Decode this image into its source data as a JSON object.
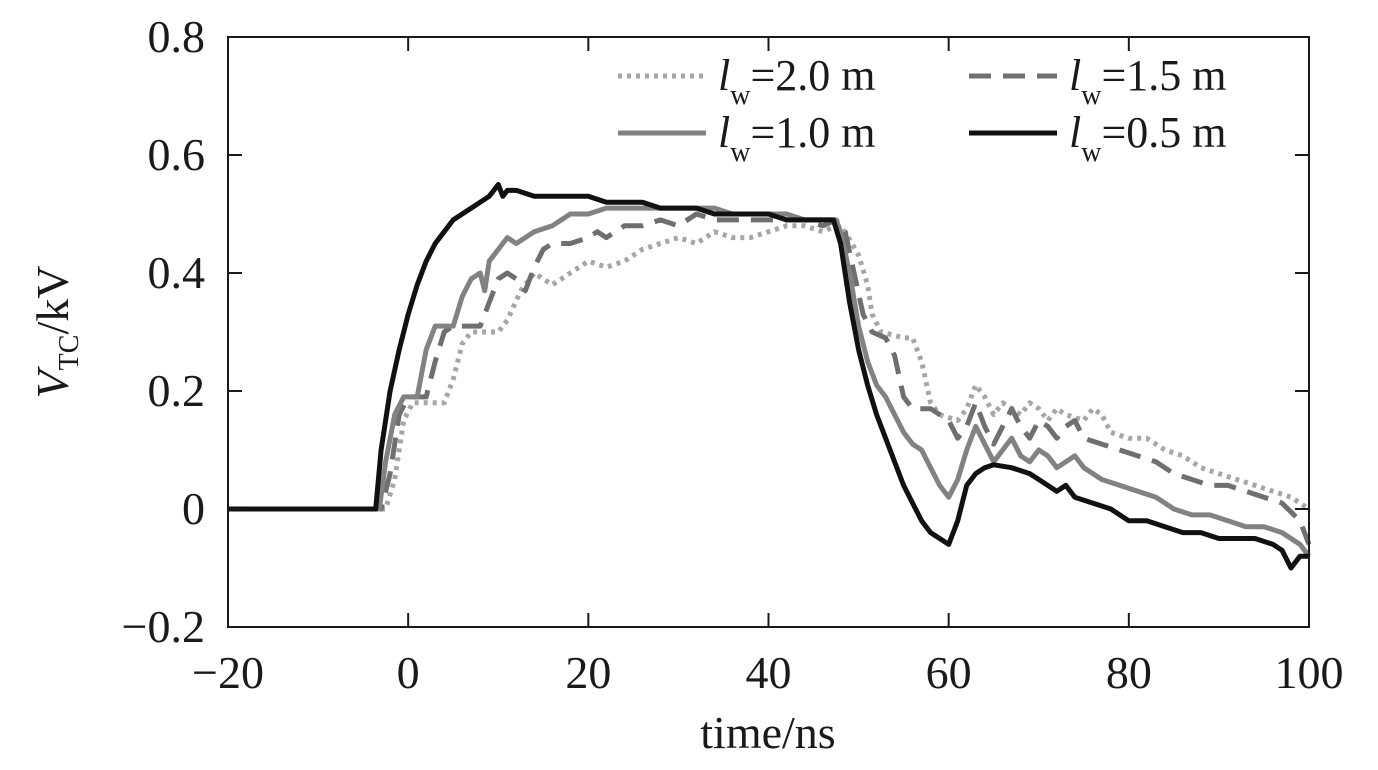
{
  "chart_data": {
    "type": "line",
    "title": "",
    "xlabel": "time/ns",
    "ylabel": {
      "main": "V",
      "sub": "TC",
      "rest": "/kV"
    },
    "xlim": [
      -20,
      100
    ],
    "ylim": [
      -0.2,
      0.8
    ],
    "xticks": [
      -20,
      0,
      20,
      40,
      60,
      80,
      100
    ],
    "xtick_labels": [
      "−20",
      "0",
      "20",
      "40",
      "60",
      "80",
      "100"
    ],
    "yticks": [
      -0.2,
      0,
      0.2,
      0.4,
      0.6,
      0.8
    ],
    "ytick_labels": [
      "−0.2",
      "0",
      "0.2",
      "0.4",
      "0.6",
      "0.8"
    ],
    "grid": false,
    "legend_position": "top-right",
    "series": [
      {
        "name": "l_w=2.0 m",
        "legend": {
          "l": "l",
          "sub": "w",
          "rest": "=2.0 m"
        },
        "color": "#a6a6a6",
        "dash": "dotted",
        "points": [
          [
            -20,
            0
          ],
          [
            -2.5,
            0
          ],
          [
            -1.5,
            0.05
          ],
          [
            -0.5,
            0.15
          ],
          [
            0.5,
            0.18
          ],
          [
            4,
            0.18
          ],
          [
            5,
            0.22
          ],
          [
            6,
            0.28
          ],
          [
            7,
            0.3
          ],
          [
            10,
            0.3
          ],
          [
            11,
            0.32
          ],
          [
            12.5,
            0.37
          ],
          [
            14,
            0.4
          ],
          [
            16,
            0.38
          ],
          [
            18,
            0.4
          ],
          [
            20,
            0.42
          ],
          [
            22,
            0.41
          ],
          [
            24,
            0.42
          ],
          [
            26,
            0.44
          ],
          [
            28,
            0.45
          ],
          [
            30,
            0.46
          ],
          [
            32,
            0.45
          ],
          [
            34,
            0.47
          ],
          [
            36,
            0.46
          ],
          [
            38,
            0.46
          ],
          [
            40,
            0.47
          ],
          [
            42,
            0.48
          ],
          [
            44,
            0.48
          ],
          [
            46,
            0.47
          ],
          [
            47.5,
            0.48
          ],
          [
            48.5,
            0.47
          ],
          [
            50,
            0.43
          ],
          [
            51,
            0.38
          ],
          [
            51.5,
            0.33
          ],
          [
            52.5,
            0.3
          ],
          [
            55,
            0.29
          ],
          [
            56,
            0.29
          ],
          [
            57,
            0.25
          ],
          [
            58,
            0.18
          ],
          [
            59,
            0.16
          ],
          [
            61,
            0.15
          ],
          [
            62,
            0.17
          ],
          [
            63,
            0.21
          ],
          [
            64,
            0.19
          ],
          [
            65,
            0.16
          ],
          [
            66,
            0.18
          ],
          [
            67,
            0.17
          ],
          [
            68,
            0.16
          ],
          [
            69,
            0.18
          ],
          [
            70,
            0.17
          ],
          [
            71,
            0.15
          ],
          [
            72,
            0.17
          ],
          [
            73,
            0.16
          ],
          [
            75,
            0.15
          ],
          [
            76,
            0.17
          ],
          [
            77,
            0.16
          ],
          [
            78,
            0.13
          ],
          [
            80,
            0.12
          ],
          [
            82,
            0.12
          ],
          [
            84,
            0.1
          ],
          [
            86,
            0.09
          ],
          [
            88,
            0.07
          ],
          [
            90,
            0.06
          ],
          [
            92,
            0.05
          ],
          [
            94,
            0.04
          ],
          [
            96,
            0.03
          ],
          [
            98,
            0.02
          ],
          [
            100,
            0.0
          ]
        ]
      },
      {
        "name": "l_w=1.5 m",
        "legend": {
          "l": "l",
          "sub": "w",
          "rest": "=1.5 m"
        },
        "color": "#6f6f6f",
        "dash": "dashed",
        "points": [
          [
            -20,
            0
          ],
          [
            -3,
            0
          ],
          [
            -2,
            0.06
          ],
          [
            -1,
            0.16
          ],
          [
            0,
            0.19
          ],
          [
            2,
            0.19
          ],
          [
            3,
            0.25
          ],
          [
            4,
            0.3
          ],
          [
            5,
            0.31
          ],
          [
            8,
            0.31
          ],
          [
            9,
            0.35
          ],
          [
            10,
            0.39
          ],
          [
            11,
            0.4
          ],
          [
            12,
            0.39
          ],
          [
            13,
            0.37
          ],
          [
            14,
            0.41
          ],
          [
            15,
            0.44
          ],
          [
            16,
            0.45
          ],
          [
            18,
            0.45
          ],
          [
            20,
            0.46
          ],
          [
            21,
            0.47
          ],
          [
            22,
            0.46
          ],
          [
            24,
            0.48
          ],
          [
            26,
            0.48
          ],
          [
            28,
            0.49
          ],
          [
            30,
            0.48
          ],
          [
            32,
            0.5
          ],
          [
            34,
            0.49
          ],
          [
            36,
            0.49
          ],
          [
            38,
            0.49
          ],
          [
            40,
            0.49
          ],
          [
            42,
            0.49
          ],
          [
            44,
            0.49
          ],
          [
            46,
            0.48
          ],
          [
            47.5,
            0.49
          ],
          [
            48.5,
            0.47
          ],
          [
            49.5,
            0.4
          ],
          [
            50.5,
            0.33
          ],
          [
            51.5,
            0.3
          ],
          [
            53,
            0.29
          ],
          [
            54,
            0.26
          ],
          [
            55,
            0.19
          ],
          [
            56,
            0.17
          ],
          [
            58,
            0.17
          ],
          [
            60,
            0.15
          ],
          [
            61,
            0.12
          ],
          [
            62,
            0.14
          ],
          [
            63,
            0.18
          ],
          [
            64,
            0.14
          ],
          [
            65,
            0.11
          ],
          [
            66,
            0.14
          ],
          [
            67,
            0.17
          ],
          [
            68,
            0.14
          ],
          [
            69,
            0.12
          ],
          [
            70,
            0.15
          ],
          [
            71,
            0.14
          ],
          [
            72,
            0.12
          ],
          [
            73,
            0.14
          ],
          [
            74,
            0.15
          ],
          [
            75,
            0.12
          ],
          [
            77,
            0.11
          ],
          [
            79,
            0.1
          ],
          [
            81,
            0.09
          ],
          [
            83,
            0.08
          ],
          [
            85,
            0.06
          ],
          [
            87,
            0.05
          ],
          [
            89,
            0.04
          ],
          [
            91,
            0.04
          ],
          [
            93,
            0.03
          ],
          [
            95,
            0.02
          ],
          [
            97,
            0.01
          ],
          [
            99,
            -0.02
          ],
          [
            100,
            -0.06
          ]
        ]
      },
      {
        "name": "l_w=1.0 m",
        "legend": {
          "l": "l",
          "sub": "w",
          "rest": "=1.0 m"
        },
        "color": "#828282",
        "dash": "solid",
        "points": [
          [
            -20,
            0
          ],
          [
            -3.2,
            0
          ],
          [
            -2.5,
            0.08
          ],
          [
            -1.5,
            0.16
          ],
          [
            -0.5,
            0.19
          ],
          [
            1,
            0.19
          ],
          [
            2,
            0.27
          ],
          [
            3,
            0.31
          ],
          [
            4,
            0.31
          ],
          [
            5,
            0.31
          ],
          [
            6,
            0.36
          ],
          [
            7,
            0.39
          ],
          [
            8,
            0.4
          ],
          [
            8.5,
            0.37
          ],
          [
            9,
            0.42
          ],
          [
            10,
            0.44
          ],
          [
            11,
            0.46
          ],
          [
            12,
            0.45
          ],
          [
            14,
            0.47
          ],
          [
            16,
            0.48
          ],
          [
            18,
            0.5
          ],
          [
            20,
            0.5
          ],
          [
            22,
            0.51
          ],
          [
            24,
            0.51
          ],
          [
            26,
            0.51
          ],
          [
            28,
            0.51
          ],
          [
            30,
            0.51
          ],
          [
            32,
            0.51
          ],
          [
            34,
            0.51
          ],
          [
            36,
            0.5
          ],
          [
            38,
            0.5
          ],
          [
            40,
            0.5
          ],
          [
            42,
            0.5
          ],
          [
            44,
            0.49
          ],
          [
            46,
            0.49
          ],
          [
            47.5,
            0.49
          ],
          [
            48,
            0.47
          ],
          [
            49,
            0.4
          ],
          [
            50,
            0.31
          ],
          [
            51,
            0.25
          ],
          [
            52,
            0.21
          ],
          [
            53,
            0.19
          ],
          [
            54,
            0.16
          ],
          [
            55,
            0.13
          ],
          [
            56,
            0.11
          ],
          [
            57,
            0.1
          ],
          [
            58,
            0.07
          ],
          [
            59,
            0.04
          ],
          [
            60,
            0.02
          ],
          [
            61,
            0.05
          ],
          [
            62,
            0.1
          ],
          [
            63,
            0.14
          ],
          [
            64,
            0.11
          ],
          [
            65,
            0.08
          ],
          [
            66,
            0.1
          ],
          [
            67,
            0.12
          ],
          [
            68,
            0.09
          ],
          [
            69,
            0.08
          ],
          [
            70,
            0.1
          ],
          [
            71,
            0.09
          ],
          [
            72,
            0.07
          ],
          [
            73,
            0.08
          ],
          [
            74,
            0.09
          ],
          [
            75,
            0.07
          ],
          [
            77,
            0.05
          ],
          [
            79,
            0.04
          ],
          [
            81,
            0.03
          ],
          [
            83,
            0.02
          ],
          [
            85,
            0.0
          ],
          [
            87,
            -0.01
          ],
          [
            89,
            -0.01
          ],
          [
            91,
            -0.02
          ],
          [
            93,
            -0.03
          ],
          [
            95,
            -0.03
          ],
          [
            97,
            -0.04
          ],
          [
            99,
            -0.06
          ],
          [
            100,
            -0.08
          ]
        ]
      },
      {
        "name": "l_w=0.5 m",
        "legend": {
          "l": "l",
          "sub": "w",
          "rest": "=0.5 m"
        },
        "color": "#111111",
        "dash": "solid",
        "points": [
          [
            -20,
            0
          ],
          [
            -3.6,
            0
          ],
          [
            -3,
            0.1
          ],
          [
            -2,
            0.2
          ],
          [
            -1,
            0.27
          ],
          [
            0,
            0.33
          ],
          [
            1,
            0.38
          ],
          [
            2,
            0.42
          ],
          [
            3,
            0.45
          ],
          [
            4,
            0.47
          ],
          [
            5,
            0.49
          ],
          [
            6,
            0.5
          ],
          [
            7,
            0.51
          ],
          [
            8,
            0.52
          ],
          [
            9,
            0.53
          ],
          [
            10,
            0.55
          ],
          [
            10.5,
            0.53
          ],
          [
            11,
            0.54
          ],
          [
            12,
            0.54
          ],
          [
            14,
            0.53
          ],
          [
            16,
            0.53
          ],
          [
            18,
            0.53
          ],
          [
            20,
            0.53
          ],
          [
            22,
            0.52
          ],
          [
            24,
            0.52
          ],
          [
            26,
            0.52
          ],
          [
            28,
            0.51
          ],
          [
            30,
            0.51
          ],
          [
            32,
            0.51
          ],
          [
            34,
            0.5
          ],
          [
            36,
            0.5
          ],
          [
            38,
            0.5
          ],
          [
            40,
            0.5
          ],
          [
            42,
            0.49
          ],
          [
            44,
            0.49
          ],
          [
            46,
            0.49
          ],
          [
            47.2,
            0.49
          ],
          [
            48,
            0.45
          ],
          [
            49,
            0.35
          ],
          [
            50,
            0.27
          ],
          [
            51,
            0.21
          ],
          [
            52,
            0.16
          ],
          [
            53,
            0.12
          ],
          [
            54,
            0.08
          ],
          [
            55,
            0.04
          ],
          [
            56,
            0.01
          ],
          [
            57,
            -0.02
          ],
          [
            58,
            -0.04
          ],
          [
            59,
            -0.05
          ],
          [
            60,
            -0.06
          ],
          [
            61,
            -0.02
          ],
          [
            62,
            0.04
          ],
          [
            63,
            0.06
          ],
          [
            64,
            0.07
          ],
          [
            65,
            0.075
          ],
          [
            67,
            0.07
          ],
          [
            69,
            0.06
          ],
          [
            70,
            0.05
          ],
          [
            71,
            0.04
          ],
          [
            72,
            0.03
          ],
          [
            73,
            0.04
          ],
          [
            74,
            0.02
          ],
          [
            76,
            0.01
          ],
          [
            78,
            0.0
          ],
          [
            80,
            -0.02
          ],
          [
            82,
            -0.02
          ],
          [
            84,
            -0.03
          ],
          [
            86,
            -0.04
          ],
          [
            88,
            -0.04
          ],
          [
            90,
            -0.05
          ],
          [
            92,
            -0.05
          ],
          [
            94,
            -0.05
          ],
          [
            96,
            -0.06
          ],
          [
            97,
            -0.07
          ],
          [
            98,
            -0.1
          ],
          [
            99,
            -0.08
          ],
          [
            100,
            -0.08
          ]
        ]
      }
    ]
  }
}
